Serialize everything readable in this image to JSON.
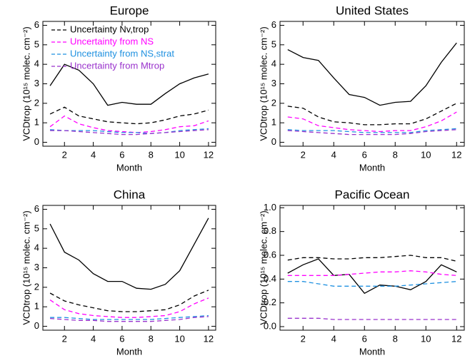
{
  "chart_data": [
    {
      "type": "line",
      "title": "Europe",
      "xlabel": "Month",
      "ylabel": "VCDtrop (10¹⁵ molec. cm⁻²)",
      "x": [
        1,
        2,
        3,
        4,
        5,
        6,
        7,
        8,
        9,
        10,
        11,
        12
      ],
      "xlim": [
        0.5,
        12.5
      ],
      "xticks": [
        2,
        4,
        6,
        8,
        10,
        12
      ],
      "ylim": [
        -0.2,
        6.2
      ],
      "yticks": [
        0,
        1,
        2,
        3,
        4,
        5,
        6
      ],
      "legend": "upper left",
      "series": [
        {
          "color": "#000000",
          "dash": false,
          "values": [
            2.9,
            4.0,
            3.7,
            3.0,
            1.9,
            2.05,
            1.95,
            1.95,
            2.5,
            3.0,
            3.3,
            3.5
          ]
        },
        {
          "name": "Uncertainty Nv,trop",
          "color": "#000000",
          "dash": true,
          "values": [
            1.45,
            1.8,
            1.35,
            1.2,
            1.05,
            1.0,
            0.95,
            1.0,
            1.15,
            1.35,
            1.45,
            1.65
          ]
        },
        {
          "name": "Uncertainty from NS",
          "color": "#ff00ff",
          "dash": true,
          "values": [
            0.8,
            1.35,
            0.95,
            0.75,
            0.6,
            0.55,
            0.5,
            0.55,
            0.65,
            0.8,
            0.85,
            1.1
          ]
        },
        {
          "name": "Uncertainty from NS,strat",
          "color": "#1e90e0",
          "dash": true,
          "values": [
            0.65,
            0.6,
            0.6,
            0.6,
            0.55,
            0.5,
            0.5,
            0.45,
            0.5,
            0.6,
            0.65,
            0.7
          ]
        },
        {
          "name": "Uncertainty from Mtrop",
          "color": "#9932cc",
          "dash": true,
          "values": [
            0.6,
            0.6,
            0.55,
            0.5,
            0.45,
            0.4,
            0.4,
            0.45,
            0.5,
            0.55,
            0.6,
            0.65
          ]
        }
      ]
    },
    {
      "type": "line",
      "title": "United States",
      "xlabel": "Month",
      "ylabel": "VCDtrop (10¹⁵ molec. cm⁻²)",
      "x": [
        1,
        2,
        3,
        4,
        5,
        6,
        7,
        8,
        9,
        10,
        11,
        12
      ],
      "xlim": [
        0.5,
        12.5
      ],
      "xticks": [
        2,
        4,
        6,
        8,
        10,
        12
      ],
      "ylim": [
        -0.2,
        6.2
      ],
      "yticks": [
        0,
        1,
        2,
        3,
        4,
        5,
        6
      ],
      "series": [
        {
          "color": "#000000",
          "dash": false,
          "values": [
            4.75,
            4.35,
            4.2,
            3.3,
            2.45,
            2.3,
            1.9,
            2.05,
            2.1,
            2.9,
            4.1,
            5.1
          ]
        },
        {
          "color": "#000000",
          "dash": true,
          "values": [
            1.85,
            1.75,
            1.3,
            1.05,
            1.0,
            0.9,
            0.9,
            0.95,
            0.95,
            1.2,
            1.6,
            2.0
          ]
        },
        {
          "color": "#ff00ff",
          "dash": true,
          "values": [
            1.3,
            1.2,
            0.85,
            0.75,
            0.65,
            0.6,
            0.55,
            0.6,
            0.6,
            0.8,
            1.1,
            1.55
          ]
        },
        {
          "color": "#1e90e0",
          "dash": true,
          "values": [
            0.65,
            0.6,
            0.6,
            0.6,
            0.55,
            0.5,
            0.5,
            0.5,
            0.5,
            0.6,
            0.65,
            0.7
          ]
        },
        {
          "color": "#9932cc",
          "dash": true,
          "values": [
            0.6,
            0.55,
            0.5,
            0.45,
            0.4,
            0.4,
            0.4,
            0.4,
            0.45,
            0.55,
            0.6,
            0.65
          ]
        }
      ]
    },
    {
      "type": "line",
      "title": "China",
      "xlabel": "Month",
      "ylabel": "VCDtrop (10¹⁵ molec. cm⁻²)",
      "x": [
        1,
        2,
        3,
        4,
        5,
        6,
        7,
        8,
        9,
        10,
        11,
        12
      ],
      "xlim": [
        0.5,
        12.5
      ],
      "xticks": [
        2,
        4,
        6,
        8,
        10,
        12
      ],
      "ylim": [
        -0.2,
        6.2
      ],
      "yticks": [
        0,
        1,
        2,
        3,
        4,
        5,
        6
      ],
      "series": [
        {
          "color": "#000000",
          "dash": false,
          "values": [
            5.25,
            3.8,
            3.4,
            2.7,
            2.3,
            2.3,
            1.95,
            1.9,
            2.15,
            2.85,
            4.2,
            5.55
          ]
        },
        {
          "color": "#000000",
          "dash": true,
          "values": [
            1.7,
            1.3,
            1.1,
            0.95,
            0.8,
            0.75,
            0.75,
            0.8,
            0.85,
            1.1,
            1.55,
            1.85
          ]
        },
        {
          "color": "#ff00ff",
          "dash": true,
          "values": [
            1.35,
            0.85,
            0.65,
            0.55,
            0.5,
            0.45,
            0.45,
            0.5,
            0.55,
            0.75,
            1.15,
            1.45
          ]
        },
        {
          "color": "#1e90e0",
          "dash": true,
          "values": [
            0.45,
            0.45,
            0.4,
            0.35,
            0.35,
            0.35,
            0.35,
            0.35,
            0.4,
            0.45,
            0.5,
            0.55
          ]
        },
        {
          "color": "#9932cc",
          "dash": true,
          "values": [
            0.4,
            0.35,
            0.3,
            0.3,
            0.25,
            0.25,
            0.25,
            0.25,
            0.3,
            0.35,
            0.45,
            0.5
          ]
        }
      ]
    },
    {
      "type": "line",
      "title": "Pacific Ocean",
      "xlabel": "Month",
      "ylabel": "VCDtrop (10¹⁵ molec. cm⁻²)",
      "x": [
        1,
        2,
        3,
        4,
        5,
        6,
        7,
        8,
        9,
        10,
        11,
        12
      ],
      "xlim": [
        0.5,
        12.5
      ],
      "xticks": [
        2,
        4,
        6,
        8,
        10,
        12
      ],
      "ylim": [
        -0.03,
        1.02
      ],
      "yticks": [
        {
          "value": 0,
          "label": "0.0"
        },
        0.2,
        0.4,
        0.6,
        0.8,
        {
          "value": 1,
          "label": "1.0"
        }
      ],
      "series": [
        {
          "color": "#000000",
          "dash": false,
          "values": [
            0.45,
            0.52,
            0.57,
            0.43,
            0.44,
            0.28,
            0.35,
            0.34,
            0.31,
            0.38,
            0.52,
            0.46
          ]
        },
        {
          "color": "#000000",
          "dash": true,
          "values": [
            0.56,
            0.58,
            0.58,
            0.57,
            0.57,
            0.58,
            0.58,
            0.59,
            0.6,
            0.58,
            0.58,
            0.55
          ]
        },
        {
          "color": "#ff00ff",
          "dash": true,
          "values": [
            0.43,
            0.43,
            0.43,
            0.43,
            0.44,
            0.45,
            0.46,
            0.46,
            0.47,
            0.46,
            0.44,
            0.43
          ]
        },
        {
          "color": "#1e90e0",
          "dash": true,
          "values": [
            0.38,
            0.38,
            0.36,
            0.34,
            0.34,
            0.34,
            0.34,
            0.34,
            0.35,
            0.36,
            0.37,
            0.38
          ]
        },
        {
          "color": "#9932cc",
          "dash": true,
          "values": [
            0.07,
            0.07,
            0.07,
            0.06,
            0.06,
            0.06,
            0.06,
            0.06,
            0.06,
            0.06,
            0.06,
            0.06
          ]
        }
      ]
    }
  ]
}
